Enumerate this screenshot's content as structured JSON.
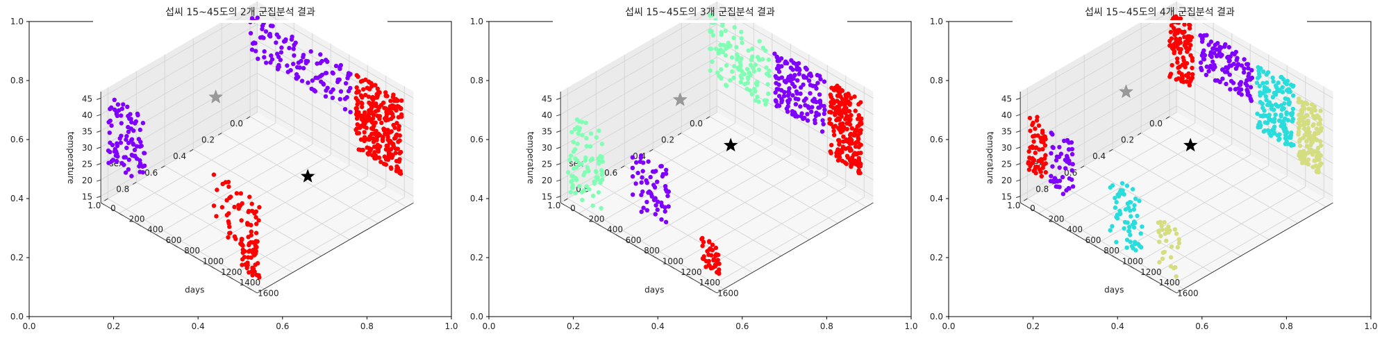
{
  "chart_data": [
    {
      "type": "scatter",
      "title": "섭씨 15~45도의 2개 군집분석 결과",
      "n_clusters": 2,
      "outer_axes": {
        "xlim": [
          0,
          1
        ],
        "ylim": [
          0,
          1
        ],
        "xticks": [
          "0.0",
          "0.2",
          "0.4",
          "0.6",
          "0.8",
          "1.0"
        ],
        "yticks": [
          "0.0",
          "0.2",
          "0.4",
          "0.6",
          "0.8",
          "1.0"
        ]
      },
      "axis3d": {
        "xlabel": "days",
        "ylabel": "sex",
        "zlabel": "temperature",
        "days_ticks": [
          "0",
          "200",
          "400",
          "600",
          "800",
          "1000",
          "1200",
          "1400",
          "1600"
        ],
        "sex_ticks": [
          "0.0",
          "0.2",
          "0.4",
          "0.6",
          "0.8",
          "1.0"
        ],
        "temp_ticks": [
          "15",
          "20",
          "25",
          "30",
          "35",
          "40",
          "45"
        ]
      },
      "colors": [
        "#ff0000",
        "#7f00ff"
      ],
      "series": [
        {
          "cluster": 0,
          "color": "#ff0000",
          "points": [
            {
              "days": [
                1150,
                1650
              ],
              "sex": 0,
              "temp": [
                22,
                45
              ],
              "n": 260
            },
            {
              "days": [
                1150,
                1650
              ],
              "sex": 1,
              "temp": [
                22,
                40
              ],
              "n": 60
            },
            {
              "days": [
                1450,
                1650
              ],
              "sex": 1,
              "temp": [
                15,
                25
              ],
              "n": 40
            }
          ]
        },
        {
          "cluster": 1,
          "color": "#7f00ff",
          "points": [
            {
              "days": [
                0,
                1100
              ],
              "sex": 0,
              "temp": [
                32,
                45
              ],
              "n": 120
            },
            {
              "days": [
                0,
                400
              ],
              "sex": 1,
              "temp": [
                24,
                45
              ],
              "n": 90
            }
          ]
        }
      ],
      "centroids": [
        {
          "days": 1400,
          "sex": 0.5,
          "temp": 30,
          "color": "#000000"
        },
        {
          "days": 400,
          "sex": 0.5,
          "temp": 38,
          "color": "#9a9a9a"
        }
      ]
    },
    {
      "type": "scatter",
      "title": "섭씨 15~45도의 3개 군집분석 결과",
      "n_clusters": 3,
      "outer_axes": {
        "xlim": [
          0,
          1
        ],
        "ylim": [
          0,
          1
        ],
        "xticks": [
          "0.0",
          "0.2",
          "0.4",
          "0.6",
          "0.8",
          "1.0"
        ],
        "yticks": [
          "0.0",
          "0.2",
          "0.4",
          "0.6",
          "0.8",
          "1.0"
        ]
      },
      "axis3d": {
        "xlabel": "days",
        "ylabel": "sex",
        "zlabel": "temperature",
        "days_ticks": [
          "0",
          "200",
          "400",
          "600",
          "800",
          "1000",
          "1200",
          "1400",
          "1600"
        ],
        "sex_ticks": [
          "0.0",
          "0.2",
          "0.4",
          "0.6",
          "0.8",
          "1.0"
        ],
        "temp_ticks": [
          "15",
          "20",
          "25",
          "30",
          "35",
          "40",
          "45"
        ]
      },
      "colors": [
        "#ff0000",
        "#7f00ff",
        "#80ffb4"
      ],
      "series": [
        {
          "cluster": 0,
          "color": "#ff0000",
          "points": [
            {
              "days": [
                1300,
                1650
              ],
              "sex": 0,
              "temp": [
                22,
                45
              ],
              "n": 220
            },
            {
              "days": [
                1450,
                1650
              ],
              "sex": 1,
              "temp": [
                15,
                25
              ],
              "n": 40
            }
          ]
        },
        {
          "cluster": 1,
          "color": "#7f00ff",
          "points": [
            {
              "days": [
                700,
                1250
              ],
              "sex": 0,
              "temp": [
                28,
                45
              ],
              "n": 140
            },
            {
              "days": [
                700,
                1100
              ],
              "sex": 1,
              "temp": [
                22,
                40
              ],
              "n": 60
            }
          ]
        },
        {
          "cluster": 2,
          "color": "#80ffb4",
          "points": [
            {
              "days": [
                0,
                650
              ],
              "sex": 0,
              "temp": [
                25,
                45
              ],
              "n": 110
            },
            {
              "days": [
                0,
                400
              ],
              "sex": 1,
              "temp": [
                15,
                40
              ],
              "n": 80
            }
          ]
        }
      ],
      "centroids": [
        {
          "days": 1000,
          "sex": 0.5,
          "temp": 33,
          "color": "#000000"
        },
        {
          "days": 450,
          "sex": 0.5,
          "temp": 38,
          "color": "#9a9a9a"
        }
      ]
    },
    {
      "type": "scatter",
      "title": "섭씨 15~45도의 4개 군집분석 결과",
      "n_clusters": 4,
      "outer_axes": {
        "xlim": [
          0,
          1
        ],
        "ylim": [
          0,
          1
        ],
        "xticks": [
          "0.0",
          "0.2",
          "0.4",
          "0.6",
          "0.8",
          "1.0"
        ],
        "yticks": [
          "0.0",
          "0.2",
          "0.4",
          "0.6",
          "0.8",
          "1.0"
        ]
      },
      "axis3d": {
        "xlabel": "days",
        "ylabel": "sex",
        "zlabel": "temperature",
        "days_ticks": [
          "0",
          "200",
          "400",
          "600",
          "800",
          "1000",
          "1200",
          "1400",
          "1600"
        ],
        "sex_ticks": [
          "0.0",
          "0.2",
          "0.4",
          "0.6",
          "0.8",
          "1.0"
        ],
        "temp_ticks": [
          "15",
          "20",
          "25",
          "30",
          "35",
          "40",
          "45"
        ]
      },
      "colors": [
        "#ff0000",
        "#7f00ff",
        "#2adddd",
        "#d4dd80"
      ],
      "series": [
        {
          "cluster": 0,
          "color": "#ff0000",
          "points": [
            {
              "days": [
                0,
                250
              ],
              "sex": 0,
              "temp": [
                25,
                45
              ],
              "n": 110
            },
            {
              "days": [
                0,
                200
              ],
              "sex": 1,
              "temp": [
                22,
                40
              ],
              "n": 60
            }
          ]
        },
        {
          "cluster": 1,
          "color": "#7f00ff",
          "points": [
            {
              "days": [
                300,
                900
              ],
              "sex": 0,
              "temp": [
                32,
                45
              ],
              "n": 110
            },
            {
              "days": [
                250,
                500
              ],
              "sex": 1,
              "temp": [
                20,
                38
              ],
              "n": 50
            }
          ]
        },
        {
          "cluster": 2,
          "color": "#2adddd",
          "points": [
            {
              "days": [
                950,
                1350
              ],
              "sex": 0,
              "temp": [
                25,
                45
              ],
              "n": 150
            },
            {
              "days": [
                900,
                1250
              ],
              "sex": 1,
              "temp": [
                15,
                35
              ],
              "n": 60
            }
          ]
        },
        {
          "cluster": 3,
          "color": "#d4dd80",
          "points": [
            {
              "days": [
                1400,
                1650
              ],
              "sex": 0,
              "temp": [
                22,
                42
              ],
              "n": 140
            },
            {
              "days": [
                1400,
                1650
              ],
              "sex": 1,
              "temp": [
                15,
                30
              ],
              "n": 30
            }
          ]
        }
      ],
      "centroids": [
        {
          "days": 1000,
          "sex": 0.5,
          "temp": 33,
          "color": "#000000"
        },
        {
          "days": 300,
          "sex": 0.5,
          "temp": 38,
          "color": "#9a9a9a"
        }
      ]
    }
  ]
}
